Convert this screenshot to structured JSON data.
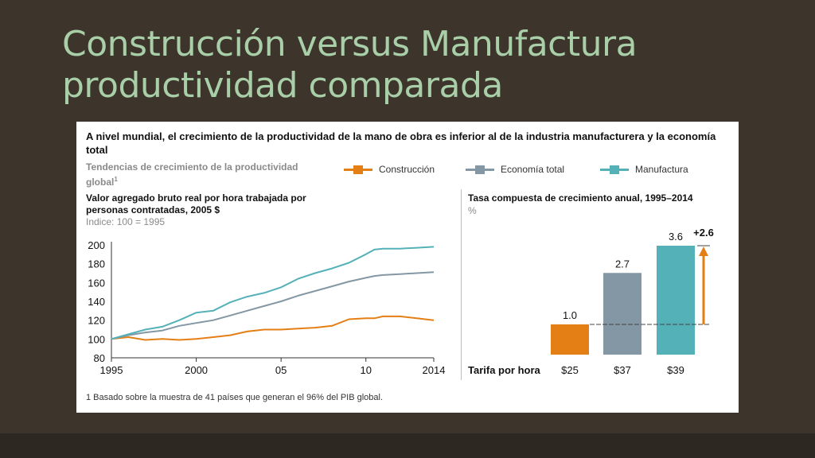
{
  "slide": {
    "title_line1": "Construcción versus Manufactura",
    "title_line2": "productividad comparada"
  },
  "panel": {
    "headline": "A nivel mundial, el crecimiento de la productividad de la mano de obra es inferior al de la industria manufacturera y la economía total",
    "subtitle": "Tendencias de crecimiento de la productividad global",
    "subtitle_footnote_mark": "1",
    "legend": [
      {
        "label": "Construcción",
        "color": "#e47f16"
      },
      {
        "label": "Economía total",
        "color": "#8497a5"
      },
      {
        "label": "Manufactura",
        "color": "#55b1b8"
      }
    ],
    "footnote": "1  Basado sobre la muestra de 41 países que generan el 96% del PIB global."
  },
  "chart_data": [
    {
      "type": "line",
      "title": "Valor agregado bruto real por hora trabajada por personas contratadas, 2005 $",
      "subtitle": "Indice: 100 = 1995",
      "xlabel": "",
      "ylabel": "",
      "x_tick_labels": [
        "1995",
        "2000",
        "05",
        "10",
        "2014"
      ],
      "y_tick_labels": [
        "200",
        "180",
        "160",
        "140",
        "120",
        "100",
        "80"
      ],
      "xlim": [
        1995,
        2014
      ],
      "ylim": [
        80,
        200
      ],
      "grid": false,
      "x": [
        1995,
        1996,
        1997,
        1998,
        1999,
        2000,
        2001,
        2002,
        2003,
        2004,
        2005,
        2006,
        2007,
        2008,
        2009,
        2010,
        2010.5,
        2011,
        2012,
        2013,
        2014
      ],
      "series": [
        {
          "name": "Construcción",
          "color": "#e47f16",
          "values": [
            100,
            102,
            99,
            100,
            99,
            100,
            102,
            104,
            108,
            110,
            110,
            111,
            112,
            114,
            121,
            122,
            122,
            124,
            124,
            122,
            120
          ]
        },
        {
          "name": "Economía total",
          "color": "#8497a5",
          "values": [
            100,
            104,
            107,
            109,
            114,
            117,
            120,
            125,
            130,
            135,
            140,
            146,
            151,
            156,
            161,
            165,
            167,
            168,
            169,
            170,
            171
          ]
        },
        {
          "name": "Manufactura",
          "color": "#55b1b8",
          "values": [
            100,
            105,
            110,
            113,
            120,
            128,
            130,
            139,
            145,
            149,
            155,
            164,
            170,
            175,
            181,
            190,
            195,
            196,
            196,
            197,
            198
          ]
        }
      ]
    },
    {
      "type": "bar",
      "title": "Tasa compuesta de crecimiento anual, 1995–2014",
      "ylabel": "%",
      "categories": [
        "Construcción",
        "Economía total",
        "Manufactura"
      ],
      "values": [
        1.0,
        2.7,
        3.6
      ],
      "value_labels": [
        "1.0",
        "2.7",
        "3.6"
      ],
      "colors": [
        "#e47f16",
        "#8497a5",
        "#55b1b8"
      ],
      "difference_annotation": "+2.6",
      "rate_header": "Tarifa por hora",
      "rates": [
        "$25",
        "$37",
        "$39"
      ]
    }
  ]
}
